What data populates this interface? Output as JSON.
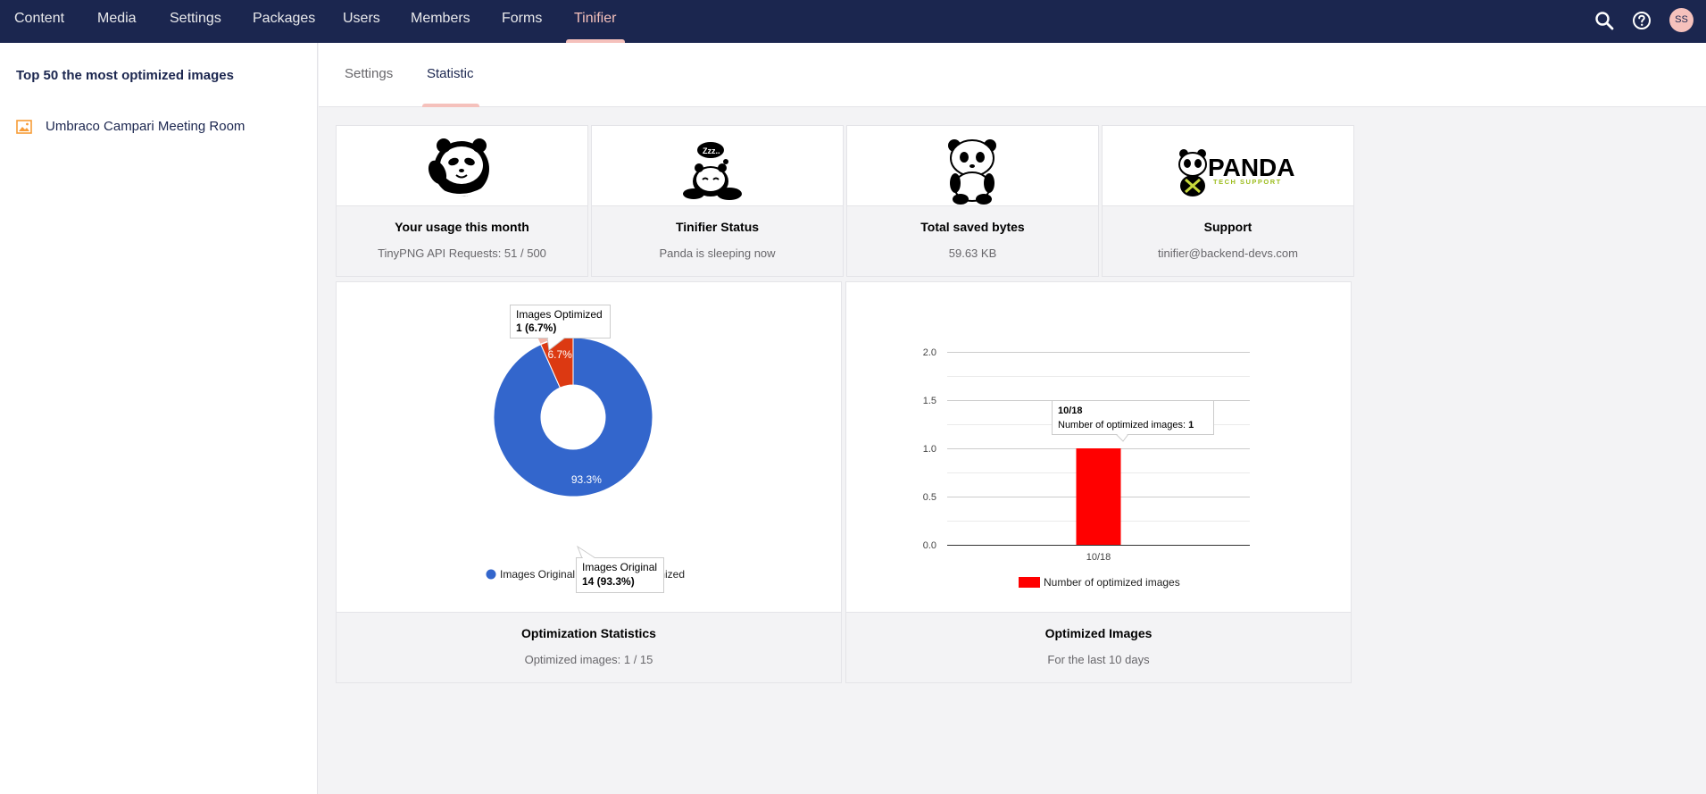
{
  "nav": {
    "items": [
      {
        "label": "Content"
      },
      {
        "label": "Media"
      },
      {
        "label": "Settings"
      },
      {
        "label": "Packages"
      },
      {
        "label": "Users"
      },
      {
        "label": "Members"
      },
      {
        "label": "Forms"
      },
      {
        "label": "Tinifier",
        "active": true
      }
    ],
    "user_initials": "SS"
  },
  "sidebar": {
    "title": "Top 50 the most optimized images",
    "items": [
      {
        "label": "Umbraco Campari Meeting Room",
        "icon": "image-icon"
      }
    ]
  },
  "tabs": [
    {
      "label": "Settings"
    },
    {
      "label": "Statistic",
      "active": true
    }
  ],
  "cards": [
    {
      "title": "Your usage this month",
      "subtitle": "TinyPNG API Requests: 51 / 500",
      "icon": "panda-wave-icon"
    },
    {
      "title": "Tinifier Status",
      "subtitle": "Panda is sleeping now",
      "icon": "panda-sleeping-icon"
    },
    {
      "title": "Total saved bytes",
      "subtitle": "59.63 KB",
      "icon": "panda-sitting-icon"
    },
    {
      "title": "Support",
      "subtitle": "tinifier@backend-devs.com",
      "icon": "panda-tech-support-logo",
      "logo_text": "PANDA",
      "logo_subtext": "TECH SUPPORT"
    }
  ],
  "charts": {
    "optimization": {
      "title": "Optimization Statistics",
      "subtitle": "Optimized images: 1 / 15",
      "tooltip_optimized": {
        "label": "Images Optimized",
        "value": "1 (6.7%)"
      },
      "tooltip_original": {
        "label": "Images Original",
        "value": "14 (93.3%)"
      },
      "legend": [
        "Images Original",
        "Images Optimized"
      ],
      "legend_visible_tail": "mized"
    },
    "optimized_images": {
      "title": "Optimized Images",
      "subtitle": "For the last 10 days",
      "tooltip": {
        "date": "10/18",
        "label": "Number of optimized images: ",
        "value": "1"
      },
      "legend": "Number of optimized images"
    }
  },
  "chart_data": [
    {
      "type": "pie",
      "donut": true,
      "labels": [
        "Images Original",
        "Images Optimized"
      ],
      "values": [
        14,
        1
      ],
      "percent_labels": [
        "93.3%",
        "6.7%"
      ],
      "colors": [
        "#3366cc",
        "#dc3912"
      ],
      "legend_position": "bottom"
    },
    {
      "type": "bar",
      "categories": [
        "10/18"
      ],
      "series": [
        {
          "name": "Number of optimized images",
          "values": [
            1
          ]
        }
      ],
      "ylim": [
        0,
        2
      ],
      "yticks": [
        "0.0",
        "0.5",
        "1.0",
        "1.5",
        "2.0"
      ],
      "color": "#ff0000",
      "grid": true,
      "legend_position": "bottom"
    }
  ]
}
